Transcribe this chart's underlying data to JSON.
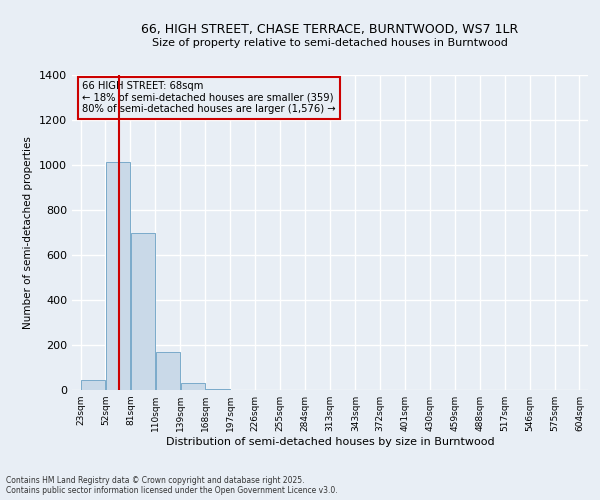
{
  "title1": "66, HIGH STREET, CHASE TERRACE, BURNTWOOD, WS7 1LR",
  "title2": "Size of property relative to semi-detached houses in Burntwood",
  "xlabel": "Distribution of semi-detached houses by size in Burntwood",
  "ylabel": "Number of semi-detached properties",
  "footer1": "Contains HM Land Registry data © Crown copyright and database right 2025.",
  "footer2": "Contains public sector information licensed under the Open Government Licence v3.0.",
  "annotation_title": "66 HIGH STREET: 68sqm",
  "annotation_line1": "← 18% of semi-detached houses are smaller (359)",
  "annotation_line2": "80% of semi-detached houses are larger (1,576) →",
  "red_line_x": 68,
  "bins": [
    23,
    52,
    81,
    110,
    139,
    168,
    197,
    226,
    255,
    284,
    313,
    343,
    372,
    401,
    430,
    459,
    488,
    517,
    546,
    575,
    604
  ],
  "counts": [
    45,
    1015,
    700,
    170,
    30,
    5,
    0,
    0,
    0,
    0,
    0,
    0,
    0,
    0,
    0,
    0,
    0,
    0,
    0,
    0
  ],
  "bar_color": "#c9d9e8",
  "bar_edge_color": "#7aaaca",
  "red_line_color": "#cc0000",
  "background_color": "#e8eef5",
  "grid_color": "#ffffff",
  "ylim": [
    0,
    1400
  ],
  "yticks": [
    0,
    200,
    400,
    600,
    800,
    1000,
    1200,
    1400
  ]
}
